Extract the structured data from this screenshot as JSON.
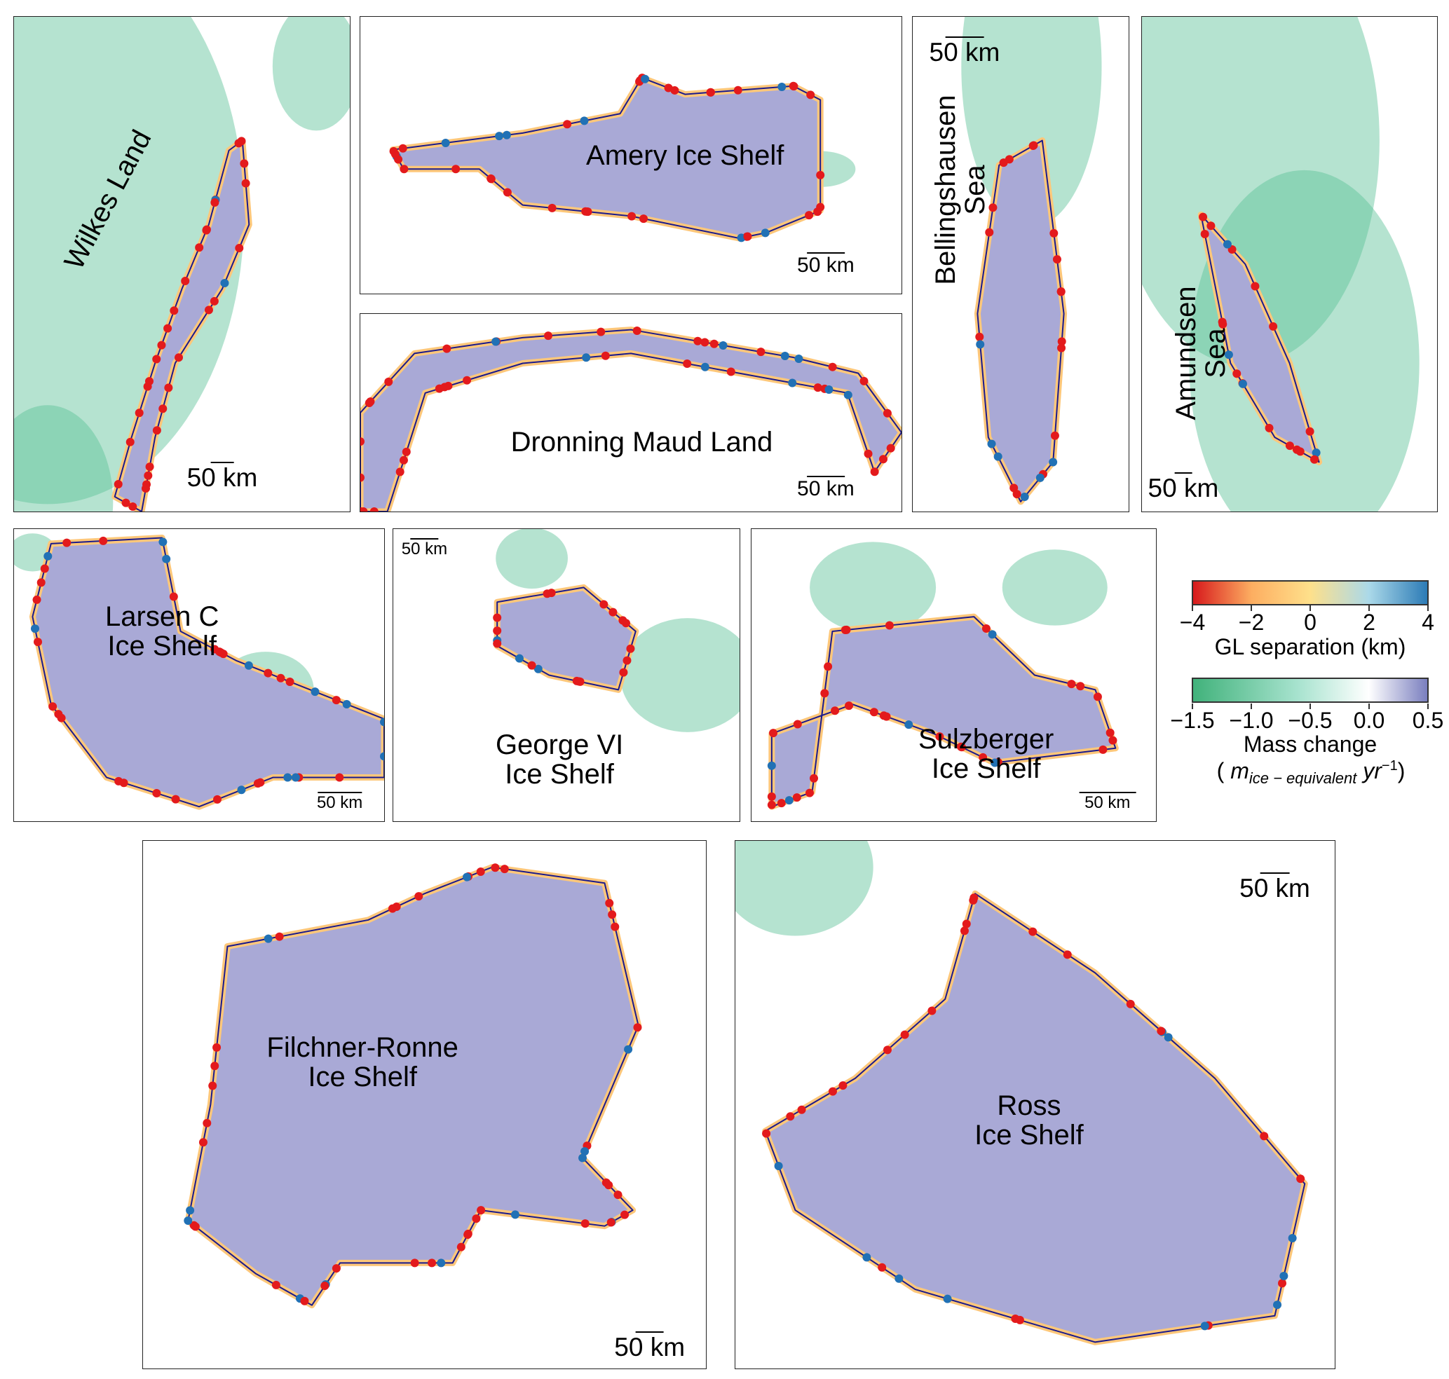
{
  "panels": [
    {
      "id": "wilkes",
      "label": "Wilkes Land",
      "scale": "50 km"
    },
    {
      "id": "amery",
      "label": "Amery Ice Shelf",
      "scale": "50 km"
    },
    {
      "id": "dronning",
      "label": "Dronning Maud Land",
      "scale": "50 km"
    },
    {
      "id": "bellingshausen",
      "label": "Bellingshausen Sea",
      "scale": "50 km"
    },
    {
      "id": "amundsen",
      "label": "Amundsen Sea",
      "scale": "50 km"
    },
    {
      "id": "larsen",
      "label": "Larsen C Ice Shelf",
      "scale": "50 km"
    },
    {
      "id": "george",
      "label": "George VI Ice Shelf",
      "scale": "50 km"
    },
    {
      "id": "sulzberger",
      "label": "Sulzberger Ice Shelf",
      "scale": "50 km"
    },
    {
      "id": "filchner",
      "label": "Filchner-Ronne Ice Shelf",
      "scale": "50 km"
    },
    {
      "id": "ross",
      "label": "Ross Ice Shelf",
      "scale": "50 km"
    }
  ],
  "colorbars": {
    "gl_separation": {
      "label": "GL separation (km)",
      "ticks": [
        "−4",
        "−2",
        "0",
        "2",
        "4"
      ],
      "range": [
        -4,
        4
      ],
      "colors": [
        "#d7191c",
        "#fdae61",
        "#fee08b",
        "#abd9e9",
        "#2c7bb6"
      ]
    },
    "mass_change": {
      "label": "Mass change",
      "unit_open": "( ",
      "unit_m": "m",
      "unit_sub": "ice − equivalent",
      "unit_yr": " yr",
      "unit_sup": "−1",
      "unit_close": ")",
      "ticks": [
        "−1.5",
        "−1.0",
        "−0.5",
        "0.0",
        "0.5"
      ],
      "range": [
        -1.5,
        0.5
      ],
      "colors": [
        "#41b27b",
        "#a8e3cf",
        "#ffffff",
        "#7a7fbf"
      ]
    }
  },
  "colors": {
    "ice_shelf": "#a9a9d6",
    "grounded_loss": "#5cc096",
    "grounding_line": "#1a1a8c",
    "gl_glow": "#fdc77a",
    "dot_red": "#e31a1c",
    "dot_blue": "#2171b5"
  }
}
